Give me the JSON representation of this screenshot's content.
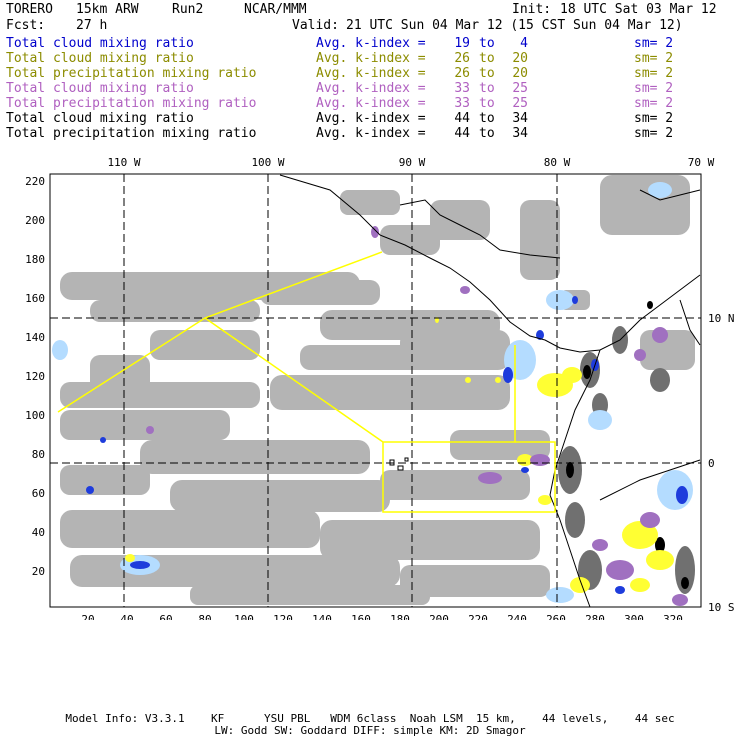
{
  "header": {
    "model": "TORERO",
    "resolution": "15km ARW",
    "run": "Run2",
    "org": "NCAR/MMM",
    "init_label": "Init:",
    "init_value": "18 UTC Sat 03 Mar 12",
    "fcst_label": "Fcst:",
    "fcst_value": "27 h",
    "valid_label": "Valid:",
    "valid_value": "21 UTC Sun 04 Mar 12 (15 CST Sun 04 Mar 12)"
  },
  "legend": [
    {
      "field": "Total cloud mixing ratio",
      "avg": "Avg. k-index =",
      "hi": "19",
      "to": "to",
      "lo": "4",
      "sm": "sm= 2",
      "color": "#0000cc"
    },
    {
      "field": "Total cloud mixing ratio",
      "avg": "Avg. k-index =",
      "hi": "26",
      "to": "to",
      "lo": "20",
      "sm": "sm= 2",
      "color": "#8c8c00"
    },
    {
      "field": "Total precipitation mixing ratio",
      "avg": "Avg. k-index =",
      "hi": "26",
      "to": "to",
      "lo": "20",
      "sm": "sm= 2",
      "color": "#8c8c00"
    },
    {
      "field": "Total cloud mixing ratio",
      "avg": "Avg. k-index =",
      "hi": "33",
      "to": "to",
      "lo": "25",
      "sm": "sm= 2",
      "color": "#b060c0"
    },
    {
      "field": "Total precipitation mixing ratio",
      "avg": "Avg. k-index =",
      "hi": "33",
      "to": "to",
      "lo": "25",
      "sm": "sm= 2",
      "color": "#b060c0"
    },
    {
      "field": "Total cloud mixing ratio",
      "avg": "Avg. k-index =",
      "hi": "44",
      "to": "to",
      "lo": "34",
      "sm": "sm= 2",
      "color": "#000000"
    },
    {
      "field": "Total precipitation mixing ratio",
      "avg": "Avg. k-index =",
      "hi": "44",
      "to": "to",
      "lo": "34",
      "sm": "sm= 2",
      "color": "#000000"
    }
  ],
  "map": {
    "lon_labels": [
      "110 W",
      "100 W",
      "90 W",
      "80 W",
      "70 W"
    ],
    "lat_labels": [
      "10 N",
      "0",
      "10 S"
    ],
    "y_ticks": [
      "220",
      "200",
      "180",
      "160",
      "140",
      "120",
      "100",
      "80",
      "60",
      "40",
      "20"
    ],
    "x_ticks": [
      "20",
      "40",
      "60",
      "80",
      "100",
      "120",
      "140",
      "160",
      "180",
      "200",
      "220",
      "240",
      "260",
      "280",
      "300",
      "320"
    ],
    "colors": {
      "cloud_gray": "#b4b4b4",
      "yellow": "#ffff33",
      "purple": "#a070c0",
      "blue": "#1e3cdc",
      "light_blue": "#b4dcff",
      "black": "#000000",
      "flight_track": "#ffff00"
    }
  },
  "footer": {
    "line1": "Model Info: V3.3.1    KF      YSU PBL   WDM 6class  Noah LSM  15 km,    44 levels,    44 sec",
    "line2": "LW: Godd SW: Goddard DIFF: simple KM: 2D Smagor"
  }
}
